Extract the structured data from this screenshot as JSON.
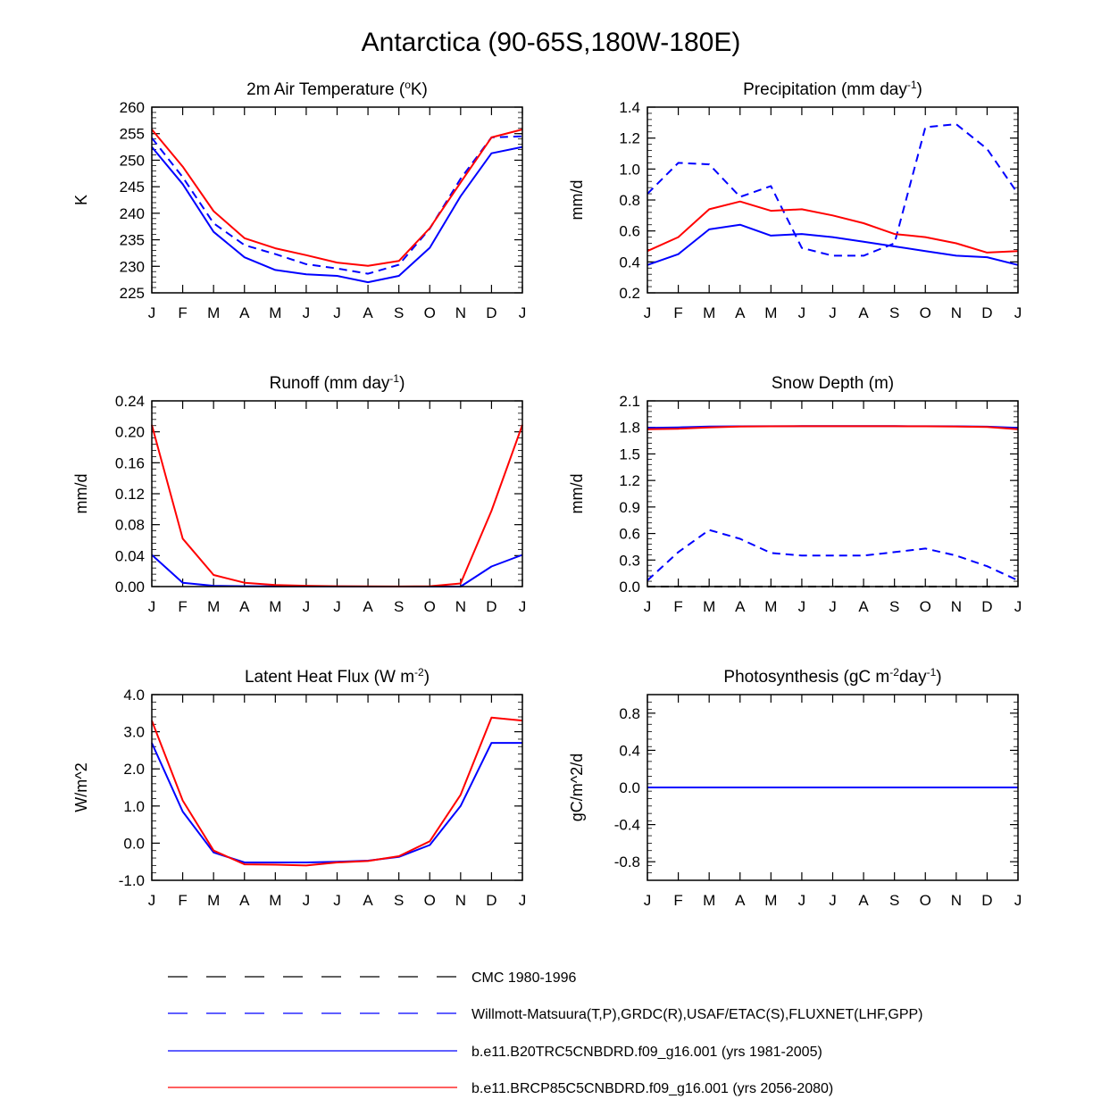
{
  "figure_title": "Antarctica (90-65S,180W-180E)",
  "months": [
    "J",
    "F",
    "M",
    "A",
    "M",
    "J",
    "J",
    "A",
    "S",
    "O",
    "N",
    "D",
    "J"
  ],
  "colors": {
    "cmc": "#000000",
    "obs": "#0000ff",
    "b20": "#0000ff",
    "rcp85": "#ff0000"
  },
  "legend": [
    {
      "label": "CMC 1980-1996",
      "style": "dashed",
      "color": "#000000"
    },
    {
      "label": "Willmott-Matsuura(T,P),GRDC(R),USAF/ETAC(S),FLUXNET(LHF,GPP)",
      "style": "dashed",
      "color": "#0000ff"
    },
    {
      "label": "b.e11.B20TRC5CNBDRD.f09_g16.001 (yrs 1981-2005)",
      "style": "solid",
      "color": "#0000ff"
    },
    {
      "label": "b.e11.BRCP85C5CNBDRD.f09_g16.001 (yrs 2056-2080)",
      "style": "solid",
      "color": "#ff0000"
    }
  ],
  "chart_data": [
    {
      "type": "line",
      "title": "2m Air Temperature (°K)",
      "title_main": "2m Air Temperature (",
      "title_sup": "o",
      "title_end": "K)",
      "ylabel": "K",
      "ylim": [
        225,
        260
      ],
      "yticks": [
        "225",
        "230",
        "235",
        "240",
        "245",
        "250",
        "255",
        "260"
      ],
      "x": [
        "J",
        "F",
        "M",
        "A",
        "M",
        "J",
        "J",
        "A",
        "S",
        "O",
        "N",
        "D",
        "J"
      ],
      "series": [
        {
          "name": "Willmott-Matsuura(T,P),GRDC(R),USAF/ETAC(S),FLUXNET(LHF,GPP)",
          "style": "dashed",
          "color": "#0000ff",
          "values": [
            254.2,
            246.8,
            238.1,
            234.0,
            232.3,
            230.4,
            229.6,
            228.6,
            230.3,
            237.1,
            246.5,
            254.3,
            254.5
          ]
        },
        {
          "name": "b.e11.B20TRC5CNBDRD.f09_g16.001 (yrs 1981-2005)",
          "style": "solid",
          "color": "#0000ff",
          "values": [
            252.5,
            245.5,
            236.5,
            231.7,
            229.3,
            228.5,
            228.2,
            227.0,
            228.2,
            233.5,
            243.2,
            251.3,
            252.5
          ]
        },
        {
          "name": "b.e11.BRCP85C5CNBDRD.f09_g16.001 (yrs 2056-2080)",
          "style": "solid",
          "color": "#ff0000",
          "values": [
            255.8,
            248.8,
            240.4,
            235.3,
            233.4,
            232.1,
            230.7,
            230.1,
            231.0,
            237.2,
            245.8,
            254.3,
            255.8
          ]
        }
      ]
    },
    {
      "type": "line",
      "title": "Precipitation (mm day-1)",
      "title_main": "Precipitation (mm day",
      "title_sup": "-1",
      "title_end": ")",
      "ylabel": "mm/d",
      "ylim": [
        0.2,
        1.4
      ],
      "yticks": [
        "0.2",
        "0.4",
        "0.6",
        "0.8",
        "1.0",
        "1.2",
        "1.4"
      ],
      "x": [
        "J",
        "F",
        "M",
        "A",
        "M",
        "J",
        "J",
        "A",
        "S",
        "O",
        "N",
        "D",
        "J"
      ],
      "series": [
        {
          "name": "Willmott-Matsuura(T,P),GRDC(R),USAF/ETAC(S),FLUXNET(LHF,GPP)",
          "style": "dashed",
          "color": "#0000ff",
          "values": [
            0.84,
            1.04,
            1.03,
            0.82,
            0.89,
            0.49,
            0.44,
            0.44,
            0.52,
            1.27,
            1.29,
            1.13,
            0.84
          ]
        },
        {
          "name": "b.e11.B20TRC5CNBDRD.f09_g16.001 (yrs 1981-2005)",
          "style": "solid",
          "color": "#0000ff",
          "values": [
            0.38,
            0.45,
            0.61,
            0.64,
            0.57,
            0.58,
            0.56,
            0.53,
            0.5,
            0.47,
            0.44,
            0.43,
            0.38
          ]
        },
        {
          "name": "b.e11.BRCP85C5CNBDRD.f09_g16.001 (yrs 2056-2080)",
          "style": "solid",
          "color": "#ff0000",
          "values": [
            0.47,
            0.56,
            0.74,
            0.79,
            0.73,
            0.74,
            0.7,
            0.65,
            0.58,
            0.56,
            0.52,
            0.46,
            0.47
          ]
        }
      ]
    },
    {
      "type": "line",
      "title": "Runoff (mm day-1)",
      "title_main": "Runoff (mm day",
      "title_sup": "-1",
      "title_end": ")",
      "ylabel": "mm/d",
      "ylim": [
        0.0,
        0.24
      ],
      "yticks": [
        "0.00",
        "0.04",
        "0.08",
        "0.12",
        "0.16",
        "0.20",
        "0.24"
      ],
      "x": [
        "J",
        "F",
        "M",
        "A",
        "M",
        "J",
        "J",
        "A",
        "S",
        "O",
        "N",
        "D",
        "J"
      ],
      "series": [
        {
          "name": "b.e11.B20TRC5CNBDRD.f09_g16.001 (yrs 1981-2005)",
          "style": "solid",
          "color": "#0000ff",
          "values": [
            0.041,
            0.005,
            0.001,
            0.0005,
            0.0003,
            0.0002,
            0.0001,
            0.0,
            0.0,
            0.0,
            0.0,
            0.026,
            0.041
          ]
        },
        {
          "name": "b.e11.BRCP85C5CNBDRD.f09_g16.001 (yrs 2056-2080)",
          "style": "solid",
          "color": "#ff0000",
          "values": [
            0.209,
            0.062,
            0.015,
            0.005,
            0.002,
            0.001,
            0.0005,
            0.0002,
            0.0001,
            0.0005,
            0.004,
            0.098,
            0.209
          ]
        }
      ]
    },
    {
      "type": "line",
      "title": "Snow Depth (m)",
      "title_main": "Snow Depth (m)",
      "title_sup": "",
      "title_end": "",
      "ylabel": "mm/d",
      "ylim": [
        0.0,
        2.1
      ],
      "yticks": [
        "0.0",
        "0.3",
        "0.6",
        "0.9",
        "1.2",
        "1.5",
        "1.8",
        "2.1"
      ],
      "x": [
        "J",
        "F",
        "M",
        "A",
        "M",
        "J",
        "J",
        "A",
        "S",
        "O",
        "N",
        "D",
        "J"
      ],
      "series": [
        {
          "name": "CMC 1980-1996",
          "style": "dashed",
          "color": "#000000",
          "values": [
            0.0,
            0.0,
            0.0,
            0.0,
            0.0,
            0.0,
            0.0,
            0.0,
            0.0,
            0.0,
            0.0,
            0.0,
            0.0
          ]
        },
        {
          "name": "Willmott-Matsuura(T,P),GRDC(R),USAF/ETAC(S),FLUXNET(LHF,GPP)",
          "style": "dashed",
          "color": "#0000ff",
          "values": [
            0.07,
            0.39,
            0.64,
            0.54,
            0.38,
            0.35,
            0.35,
            0.35,
            0.39,
            0.43,
            0.35,
            0.23,
            0.07
          ]
        },
        {
          "name": "b.e11.B20TRC5CNBDRD.f09_g16.001 (yrs 1981-2005)",
          "style": "solid",
          "color": "#0000ff",
          "values": [
            1.795,
            1.8,
            1.81,
            1.812,
            1.813,
            1.814,
            1.814,
            1.814,
            1.814,
            1.813,
            1.812,
            1.808,
            1.795
          ]
        },
        {
          "name": "b.e11.BRCP85C5CNBDRD.f09_g16.001 (yrs 2056-2080)",
          "style": "solid",
          "color": "#ff0000",
          "values": [
            1.78,
            1.785,
            1.8,
            1.81,
            1.812,
            1.813,
            1.813,
            1.813,
            1.813,
            1.812,
            1.81,
            1.805,
            1.78
          ]
        }
      ]
    },
    {
      "type": "line",
      "title": "Latent Heat Flux (W m-2)",
      "title_main": "Latent Heat Flux (W m",
      "title_sup": "-2",
      "title_end": ")",
      "ylabel": "W/m^2",
      "ylim": [
        -1.0,
        4.0
      ],
      "yticks": [
        "-1.0",
        "0.0",
        "1.0",
        "2.0",
        "3.0",
        "4.0"
      ],
      "x": [
        "J",
        "F",
        "M",
        "A",
        "M",
        "J",
        "J",
        "A",
        "S",
        "O",
        "N",
        "D",
        "J"
      ],
      "series": [
        {
          "name": "b.e11.B20TRC5CNBDRD.f09_g16.001 (yrs 1981-2005)",
          "style": "solid",
          "color": "#0000ff",
          "values": [
            2.7,
            0.85,
            -0.25,
            -0.52,
            -0.52,
            -0.52,
            -0.5,
            -0.47,
            -0.37,
            -0.05,
            1.0,
            2.7,
            2.7
          ]
        },
        {
          "name": "b.e11.BRCP85C5CNBDRD.f09_g16.001 (yrs 2056-2080)",
          "style": "solid",
          "color": "#ff0000",
          "values": [
            3.3,
            1.15,
            -0.2,
            -0.57,
            -0.58,
            -0.6,
            -0.52,
            -0.48,
            -0.35,
            0.05,
            1.3,
            3.38,
            3.3
          ]
        }
      ]
    },
    {
      "type": "line",
      "title": "Photosynthesis (gC m-2day-1)",
      "title_main": "Photosynthesis (gC m",
      "title_sup": "-2",
      "title_mid": "day",
      "title_sup2": "-1",
      "title_end": ")",
      "ylabel": "gC/m^2/d",
      "ylim": [
        -1.0,
        1.0
      ],
      "yticks": [
        "-0.8",
        "-0.4",
        "0.0",
        "0.4",
        "0.8"
      ],
      "x": [
        "J",
        "F",
        "M",
        "A",
        "M",
        "J",
        "J",
        "A",
        "S",
        "O",
        "N",
        "D",
        "J"
      ],
      "series": [
        {
          "name": "b.e11.BRCP85C5CNBDRD.f09_g16.001 (yrs 2056-2080)",
          "style": "solid",
          "color": "#ff0000",
          "values": [
            0,
            0,
            0,
            0,
            0,
            0,
            0,
            0,
            0,
            0,
            0,
            0,
            0
          ]
        },
        {
          "name": "b.e11.B20TRC5CNBDRD.f09_g16.001 (yrs 1981-2005)",
          "style": "solid",
          "color": "#0000ff",
          "values": [
            0,
            0,
            0,
            0,
            0,
            0,
            0,
            0,
            0,
            0,
            0,
            0,
            0
          ]
        }
      ]
    }
  ]
}
